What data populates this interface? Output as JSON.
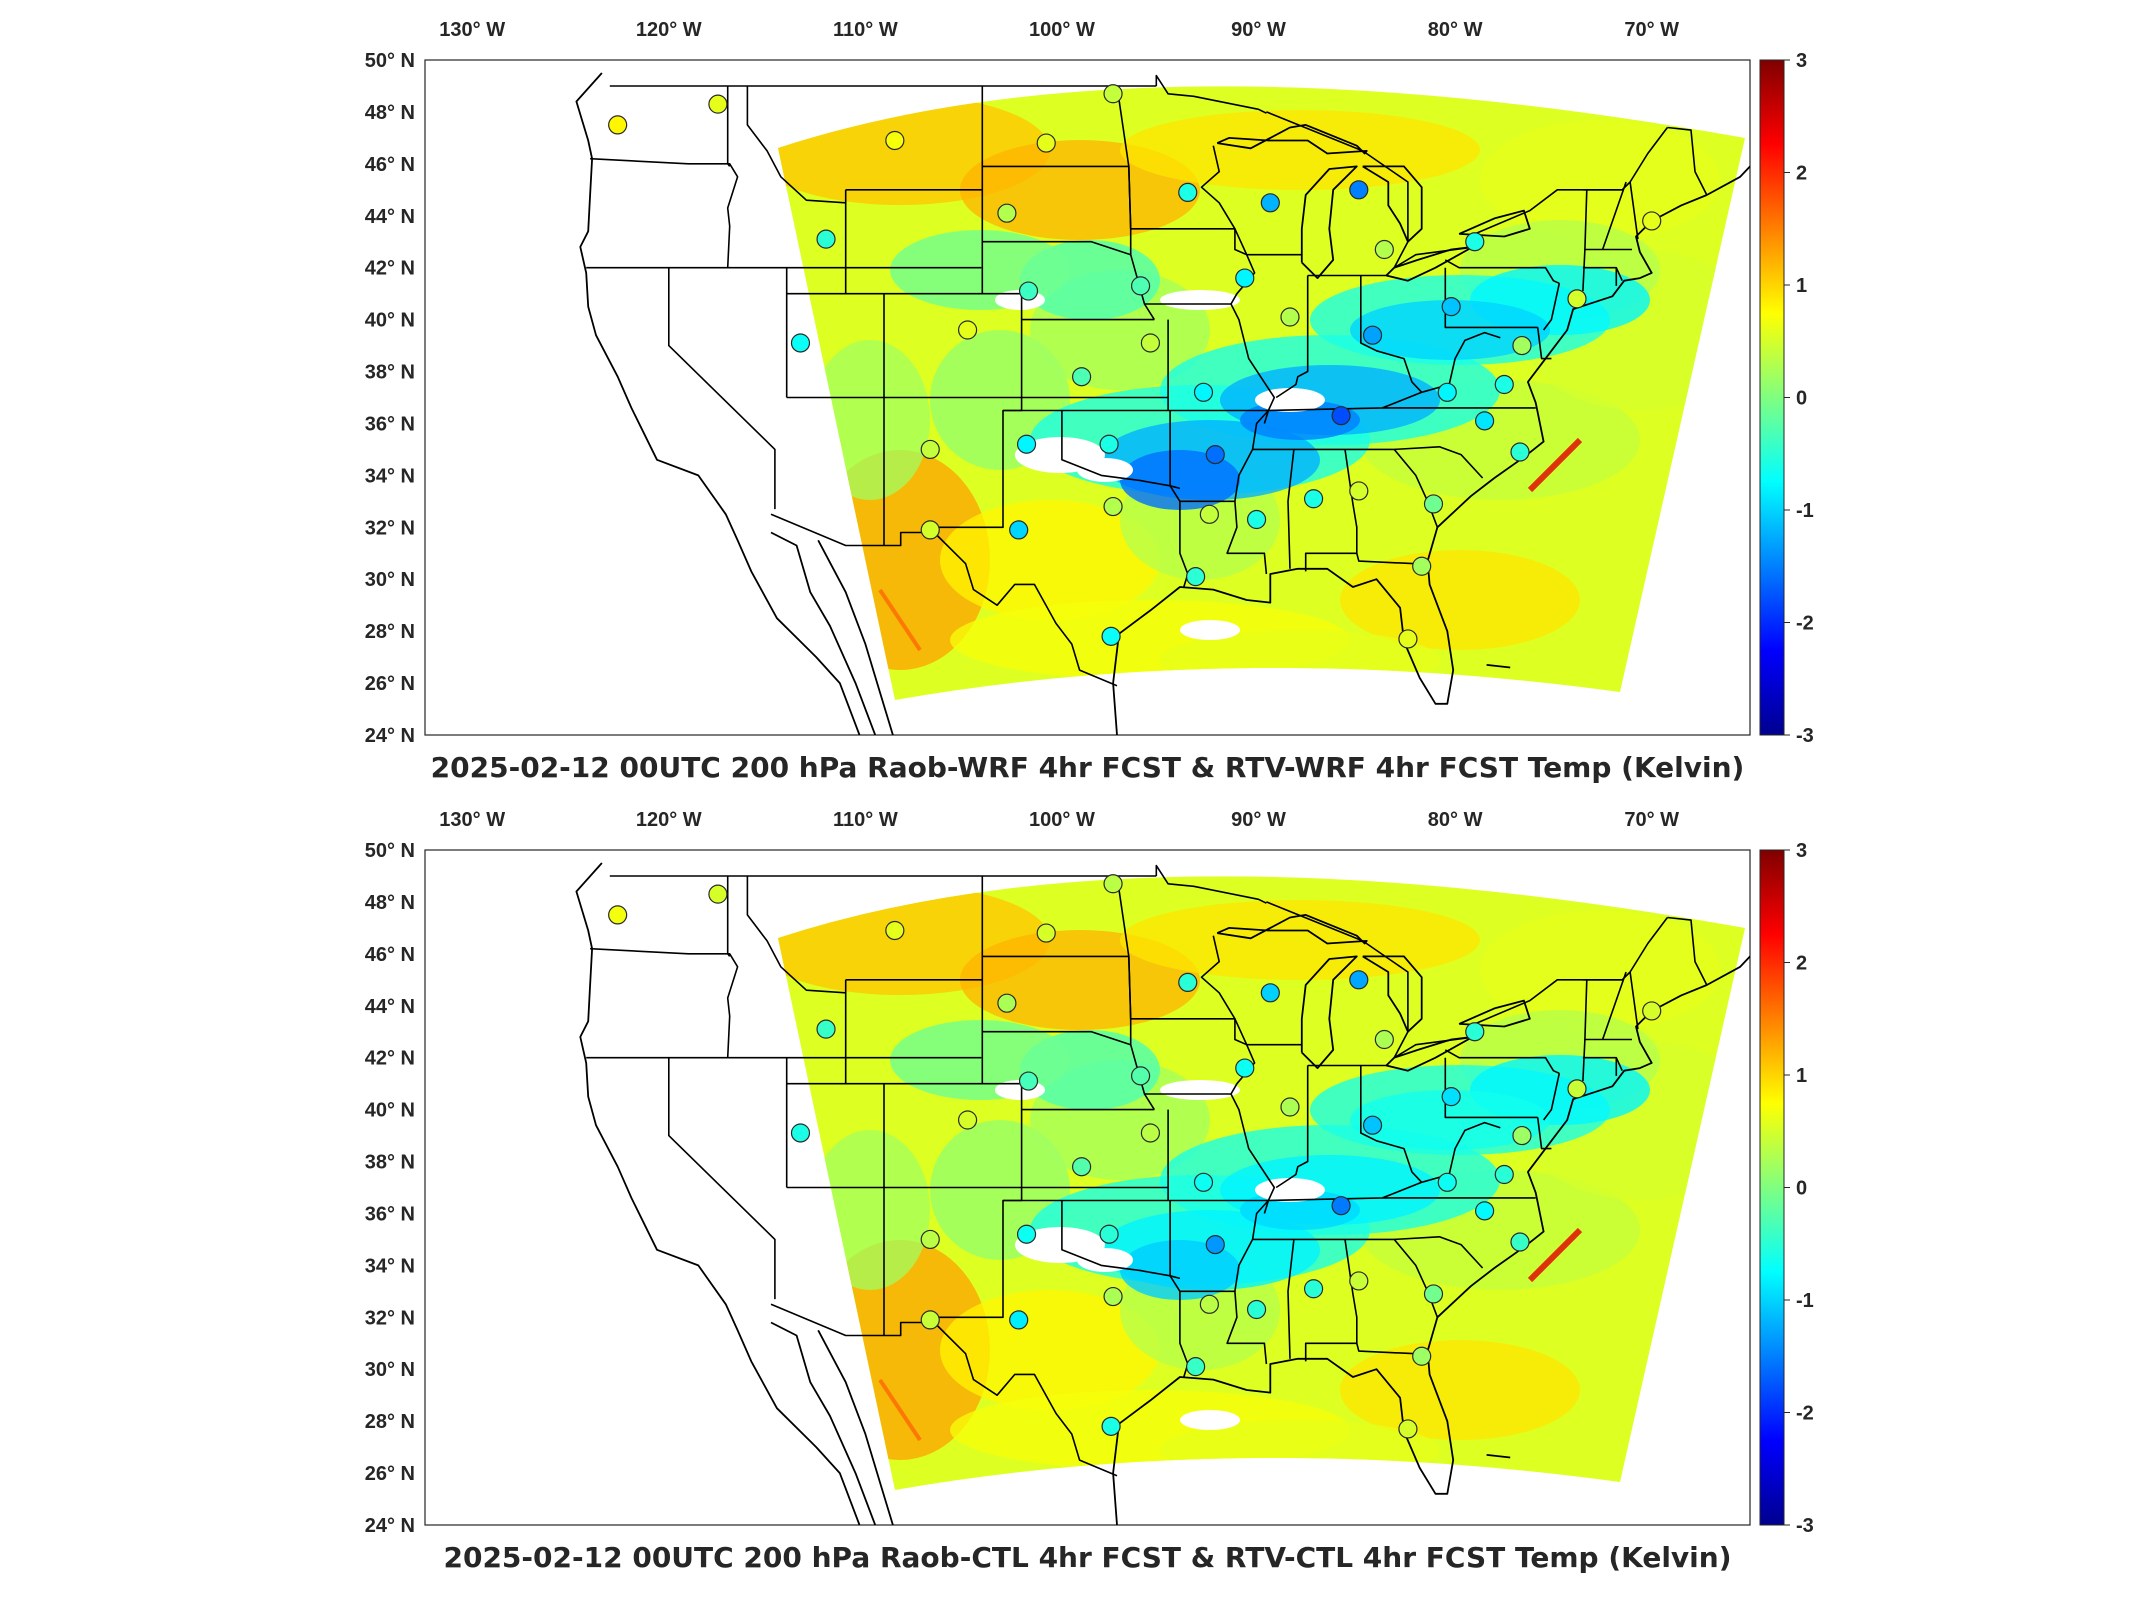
{
  "panels": [
    {
      "title": "2025-02-12 00UTC 200 hPa Raob-WRF 4hr FCST & RTV-WRF 4hr FCST Temp (Kelvin)",
      "cold_intensity": 1.0
    },
    {
      "title": "2025-02-12 00UTC 200 hPa Raob-CTL 4hr FCST & RTV-CTL 4hr FCST Temp (Kelvin)",
      "cold_intensity": 0.65
    }
  ],
  "lon_ticks": [
    "130° W",
    "120° W",
    "110° W",
    "100° W",
    "90° W",
    "80° W",
    "70° W"
  ],
  "lat_ticks": [
    "50° N",
    "48° N",
    "46° N",
    "44° N",
    "42° N",
    "40° N",
    "38° N",
    "36° N",
    "34° N",
    "32° N",
    "30° N",
    "28° N",
    "26° N",
    "24° N"
  ],
  "colorbar": {
    "labels": [
      "3",
      "2",
      "1",
      "0",
      "-1",
      "-2",
      "-3"
    ],
    "min": -3,
    "max": 3,
    "colors": [
      "#00008f",
      "#0000ff",
      "#0080ff",
      "#00ffff",
      "#80ff80",
      "#ffff00",
      "#ff8000",
      "#ff0000",
      "#800000"
    ]
  },
  "stations": [
    {
      "lon": -122.6,
      "lat": 47.5,
      "v": 0.8
    },
    {
      "lon": -117.5,
      "lat": 48.3,
      "v": 0.6
    },
    {
      "lon": -108.5,
      "lat": 46.9,
      "v": 0.7
    },
    {
      "lon": -100.8,
      "lat": 46.8,
      "v": 0.6
    },
    {
      "lon": -97.4,
      "lat": 48.7,
      "v": 0.4
    },
    {
      "lon": -93.6,
      "lat": 44.9,
      "v": -0.6
    },
    {
      "lon": -89.4,
      "lat": 44.5,
      "v": -1.2
    },
    {
      "lon": -84.9,
      "lat": 45.0,
      "v": -1.5
    },
    {
      "lon": -83.6,
      "lat": 42.7,
      "v": 0.3
    },
    {
      "lon": -79.0,
      "lat": 43.0,
      "v": -0.6
    },
    {
      "lon": -70.0,
      "lat": 43.8,
      "v": 0.6
    },
    {
      "lon": -73.8,
      "lat": 40.8,
      "v": 0.5
    },
    {
      "lon": -76.6,
      "lat": 39.0,
      "v": 0.2
    },
    {
      "lon": -77.5,
      "lat": 37.5,
      "v": -0.6
    },
    {
      "lon": -80.2,
      "lat": 40.5,
      "v": -1.1
    },
    {
      "lon": -84.2,
      "lat": 39.4,
      "v": -1.3
    },
    {
      "lon": -88.4,
      "lat": 40.1,
      "v": 0.3
    },
    {
      "lon": -90.7,
      "lat": 41.6,
      "v": -0.8
    },
    {
      "lon": -96.0,
      "lat": 41.3,
      "v": -0.3
    },
    {
      "lon": -101.7,
      "lat": 41.1,
      "v": -0.4
    },
    {
      "lon": -102.8,
      "lat": 44.1,
      "v": 0.3
    },
    {
      "lon": -112.0,
      "lat": 43.1,
      "v": -0.5
    },
    {
      "lon": -113.3,
      "lat": 39.1,
      "v": -0.7
    },
    {
      "lon": -104.8,
      "lat": 39.6,
      "v": 0.6
    },
    {
      "lon": -99.0,
      "lat": 37.8,
      "v": -0.3
    },
    {
      "lon": -95.5,
      "lat": 39.1,
      "v": 0.4
    },
    {
      "lon": -92.8,
      "lat": 37.2,
      "v": -0.8
    },
    {
      "lon": -85.8,
      "lat": 36.3,
      "v": -1.8
    },
    {
      "lon": -80.4,
      "lat": 37.2,
      "v": -0.8
    },
    {
      "lon": -78.5,
      "lat": 36.1,
      "v": -0.9
    },
    {
      "lon": -76.7,
      "lat": 34.9,
      "v": -0.5
    },
    {
      "lon": -81.1,
      "lat": 32.9,
      "v": -0.1
    },
    {
      "lon": -84.9,
      "lat": 33.4,
      "v": 0.5
    },
    {
      "lon": -87.2,
      "lat": 33.1,
      "v": -0.6
    },
    {
      "lon": -90.1,
      "lat": 32.3,
      "v": -0.6
    },
    {
      "lon": -92.5,
      "lat": 32.5,
      "v": 0.4
    },
    {
      "lon": -92.2,
      "lat": 34.8,
      "v": -1.6
    },
    {
      "lon": -97.6,
      "lat": 35.2,
      "v": -0.6
    },
    {
      "lon": -101.8,
      "lat": 35.2,
      "v": -0.8
    },
    {
      "lon": -106.7,
      "lat": 35.0,
      "v": 0.4
    },
    {
      "lon": -106.7,
      "lat": 31.9,
      "v": 0.5
    },
    {
      "lon": -102.2,
      "lat": 31.9,
      "v": -1.0
    },
    {
      "lon": -97.4,
      "lat": 32.8,
      "v": 0.3
    },
    {
      "lon": -93.2,
      "lat": 30.1,
      "v": -0.5
    },
    {
      "lon": -97.5,
      "lat": 27.8,
      "v": -0.7
    },
    {
      "lon": -82.4,
      "lat": 27.7,
      "v": 0.6
    },
    {
      "lon": -81.7,
      "lat": 30.5,
      "v": 0.2
    }
  ]
}
